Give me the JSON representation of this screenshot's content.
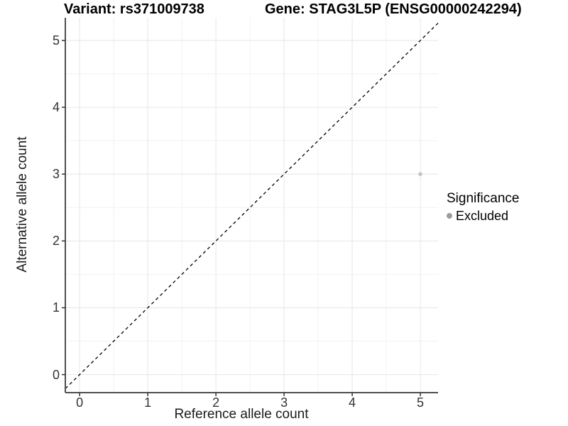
{
  "chart_data": {
    "type": "scatter",
    "title_left": "Variant: rs371009738",
    "title_right": "Gene: STAG3L5P (ENSG00000242294)",
    "xlabel": "Reference allele count",
    "ylabel": "Alternative allele count",
    "xlim": [
      -0.21,
      5.26
    ],
    "ylim": [
      -0.27,
      5.34
    ],
    "xticks": [
      0,
      1,
      2,
      3,
      4,
      5
    ],
    "yticks": [
      0,
      1,
      2,
      3,
      4,
      5
    ],
    "grid": {
      "major": true,
      "minor": true
    },
    "identity_line": {
      "slope": 1,
      "intercept": 0,
      "style": "dashed",
      "color": "#000000"
    },
    "series": [
      {
        "name": "Excluded",
        "color": "#c4c4c4",
        "points": [
          {
            "x": 5,
            "y": 3
          }
        ]
      }
    ],
    "legend": {
      "title": "Significance",
      "position": "right",
      "items": [
        {
          "label": "Excluded",
          "color": "#9c9c9c"
        }
      ]
    },
    "colors": {
      "background": "#ffffff",
      "grid_major": "#e6e6e6",
      "grid_minor": "#f2f2f2",
      "axis_line": "#4f4f4f",
      "tick_mark": "#333333",
      "point": "#c4c4c4",
      "text": "#000000",
      "axis_text": "#333333"
    }
  }
}
